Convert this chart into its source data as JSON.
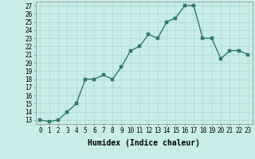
{
  "x": [
    0,
    1,
    2,
    3,
    4,
    5,
    6,
    7,
    8,
    9,
    10,
    11,
    12,
    13,
    14,
    15,
    16,
    17,
    18,
    19,
    20,
    21,
    22,
    23
  ],
  "y": [
    13,
    12.8,
    13,
    14,
    15,
    18,
    18,
    18.5,
    18,
    19.5,
    21.5,
    22,
    23.5,
    23,
    25,
    25.5,
    27,
    27,
    23,
    23,
    20.5,
    21.5,
    21.5,
    21
  ],
  "line_color": "#2d7a6a",
  "marker_color": "#2d7a6a",
  "background_color": "#c8ece8",
  "grid_color": "#aad8d3",
  "xlabel": "Humidex (Indice chaleur)",
  "ylim_min": 12.5,
  "ylim_max": 27.5,
  "xlim_min": -0.5,
  "xlim_max": 23.5,
  "yticks": [
    13,
    14,
    15,
    16,
    17,
    18,
    19,
    20,
    21,
    22,
    23,
    24,
    25,
    26,
    27
  ],
  "xticks": [
    0,
    1,
    2,
    3,
    4,
    5,
    6,
    7,
    8,
    9,
    10,
    11,
    12,
    13,
    14,
    15,
    16,
    17,
    18,
    19,
    20,
    21,
    22,
    23
  ],
  "xtick_labels": [
    "0",
    "1",
    "2",
    "3",
    "4",
    "5",
    "6",
    "7",
    "8",
    "9",
    "10",
    "11",
    "12",
    "13",
    "14",
    "15",
    "16",
    "17",
    "18",
    "19",
    "20",
    "21",
    "22",
    "23"
  ],
  "ytick_labels": [
    "13",
    "14",
    "15",
    "16",
    "17",
    "18",
    "19",
    "20",
    "21",
    "22",
    "23",
    "24",
    "25",
    "26",
    "27"
  ],
  "xlabel_fontsize": 7,
  "tick_fontsize": 5.5,
  "linewidth": 1.0,
  "markersize": 2.5
}
